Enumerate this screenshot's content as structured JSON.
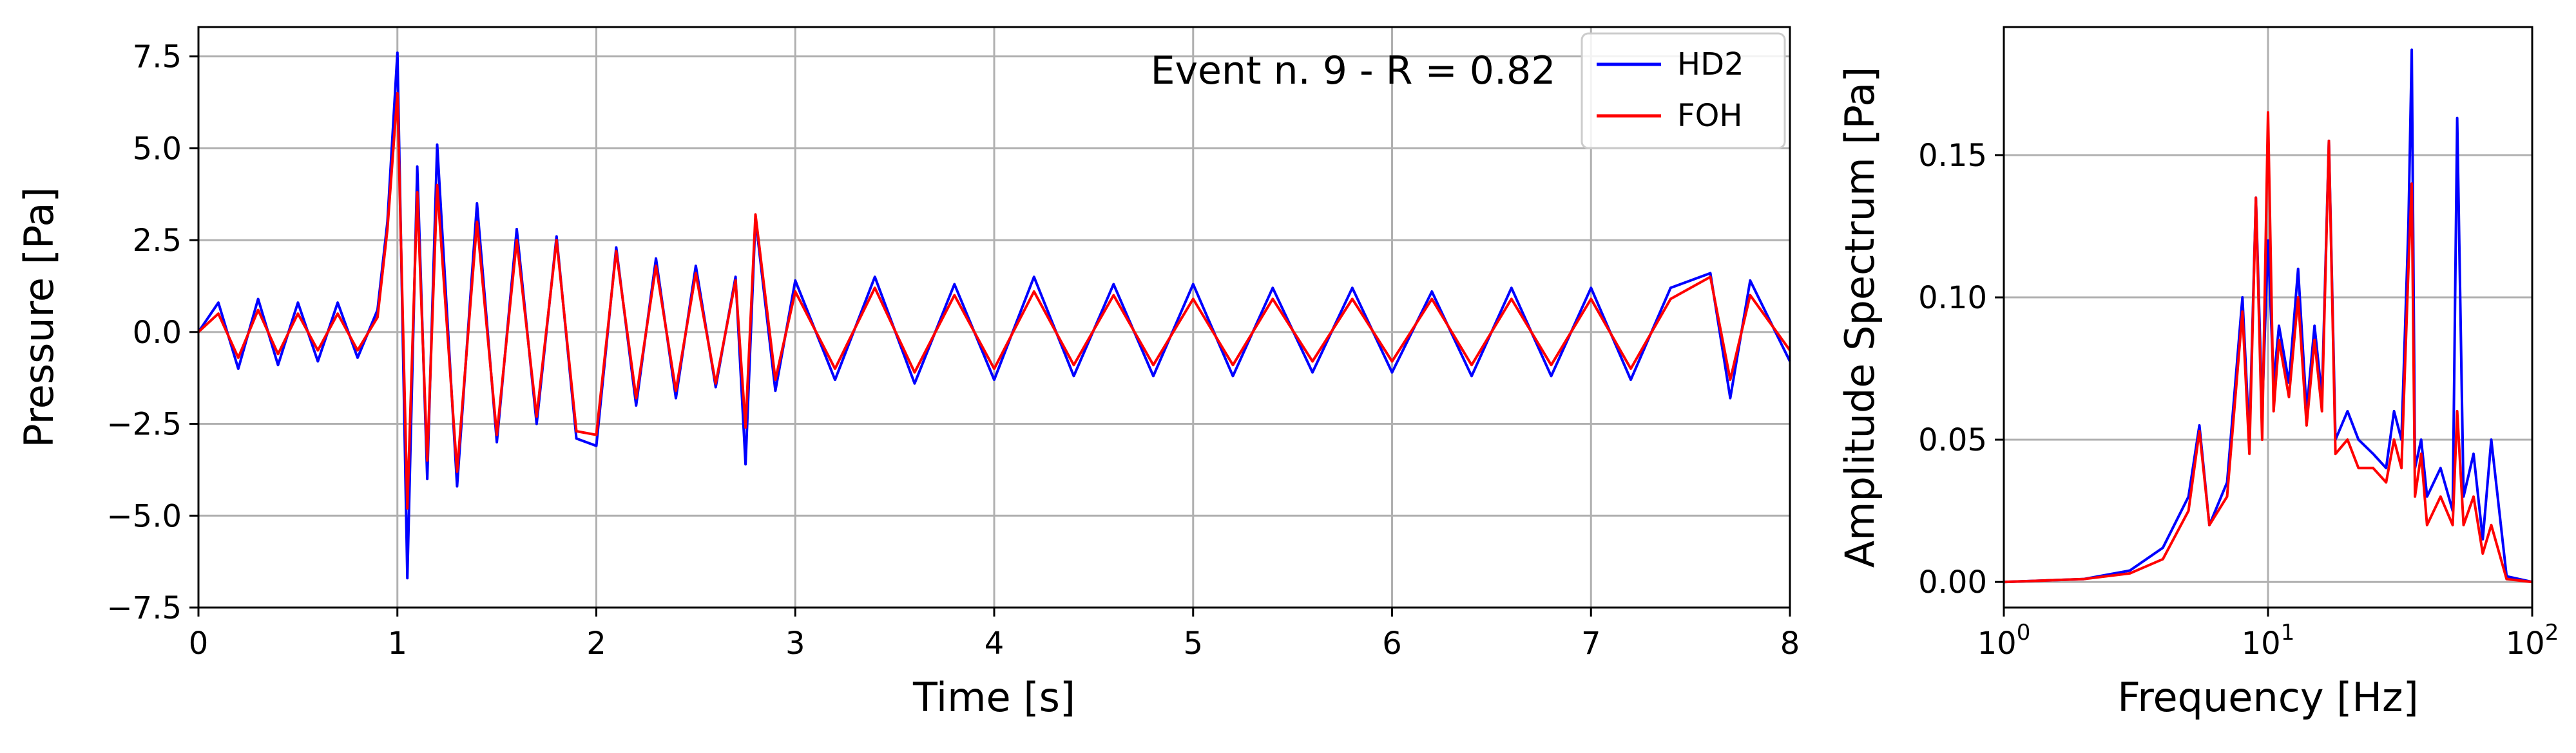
{
  "chart_data": [
    {
      "type": "line",
      "title": "Event n. 9 - R = 0.82",
      "xlabel": "Time [s]",
      "ylabel": "Pressure [Pa]",
      "xlim": [
        0,
        8
      ],
      "ylim": [
        -7.5,
        8.3
      ],
      "xticks": [
        0,
        1,
        2,
        3,
        4,
        5,
        6,
        7,
        8
      ],
      "xtick_labels": [
        "0",
        "1",
        "2",
        "3",
        "4",
        "5",
        "6",
        "7",
        "8"
      ],
      "yticks": [
        -7.5,
        -5.0,
        -2.5,
        0.0,
        2.5,
        5.0,
        7.5
      ],
      "ytick_labels": [
        "−7.5",
        "−5.0",
        "−2.5",
        "0.0",
        "2.5",
        "5.0",
        "7.5"
      ],
      "grid": true,
      "legend": "top-right",
      "series": [
        {
          "name": "HD2",
          "color": "#0000ff",
          "x": [
            0,
            0.1,
            0.2,
            0.3,
            0.4,
            0.5,
            0.6,
            0.7,
            0.8,
            0.9,
            0.95,
            1.0,
            1.05,
            1.1,
            1.15,
            1.2,
            1.3,
            1.4,
            1.5,
            1.6,
            1.7,
            1.8,
            1.9,
            2.0,
            2.1,
            2.2,
            2.3,
            2.4,
            2.5,
            2.6,
            2.7,
            2.75,
            2.8,
            2.9,
            3.0,
            3.2,
            3.4,
            3.6,
            3.8,
            4.0,
            4.2,
            4.4,
            4.6,
            4.8,
            5.0,
            5.2,
            5.4,
            5.6,
            5.8,
            6.0,
            6.2,
            6.4,
            6.6,
            6.8,
            7.0,
            7.2,
            7.4,
            7.6,
            7.7,
            7.8,
            8.0
          ],
          "y": [
            0.0,
            0.8,
            -1.0,
            0.9,
            -0.9,
            0.8,
            -0.8,
            0.8,
            -0.7,
            0.6,
            3.0,
            7.6,
            -6.7,
            4.5,
            -4.0,
            5.1,
            -4.2,
            3.5,
            -3.0,
            2.8,
            -2.5,
            2.6,
            -2.9,
            -3.1,
            2.3,
            -2.0,
            2.0,
            -1.8,
            1.8,
            -1.5,
            1.5,
            -3.6,
            3.1,
            -1.6,
            1.4,
            -1.3,
            1.5,
            -1.4,
            1.3,
            -1.3,
            1.5,
            -1.2,
            1.3,
            -1.2,
            1.3,
            -1.2,
            1.2,
            -1.1,
            1.2,
            -1.1,
            1.1,
            -1.2,
            1.2,
            -1.2,
            1.2,
            -1.3,
            1.2,
            1.6,
            -1.8,
            1.4,
            -0.8
          ]
        },
        {
          "name": "FOH",
          "color": "#ff0000",
          "x": [
            0,
            0.1,
            0.2,
            0.3,
            0.4,
            0.5,
            0.6,
            0.7,
            0.8,
            0.9,
            0.95,
            1.0,
            1.05,
            1.1,
            1.15,
            1.2,
            1.3,
            1.4,
            1.5,
            1.6,
            1.7,
            1.8,
            1.9,
            2.0,
            2.1,
            2.2,
            2.3,
            2.4,
            2.5,
            2.6,
            2.7,
            2.75,
            2.8,
            2.9,
            3.0,
            3.2,
            3.4,
            3.6,
            3.8,
            4.0,
            4.2,
            4.4,
            4.6,
            4.8,
            5.0,
            5.2,
            5.4,
            5.6,
            5.8,
            6.0,
            6.2,
            6.4,
            6.6,
            6.8,
            7.0,
            7.2,
            7.4,
            7.6,
            7.7,
            7.8,
            8.0
          ],
          "y": [
            0.0,
            0.5,
            -0.7,
            0.6,
            -0.6,
            0.5,
            -0.5,
            0.5,
            -0.5,
            0.4,
            2.8,
            6.5,
            -4.8,
            3.8,
            -3.5,
            4.0,
            -3.8,
            3.0,
            -2.8,
            2.5,
            -2.3,
            2.5,
            -2.7,
            -2.8,
            2.2,
            -1.8,
            1.8,
            -1.6,
            1.6,
            -1.4,
            1.4,
            -2.6,
            3.2,
            -1.3,
            1.1,
            -1.0,
            1.2,
            -1.1,
            1.0,
            -1.0,
            1.1,
            -0.9,
            1.0,
            -0.9,
            0.9,
            -0.9,
            0.9,
            -0.8,
            0.9,
            -0.8,
            0.9,
            -0.9,
            0.9,
            -0.9,
            0.9,
            -1.0,
            0.9,
            1.5,
            -1.3,
            1.0,
            -0.5
          ]
        }
      ]
    },
    {
      "type": "line",
      "title": "",
      "xlabel": "Frequency [Hz]",
      "ylabel": "Amplitude Spectrum [Pa]",
      "xscale": "log",
      "xlim": [
        1,
        100
      ],
      "ylim": [
        -0.009,
        0.195
      ],
      "xticks": [
        1,
        10,
        100
      ],
      "xtick_labels": [
        "10^0",
        "10^1",
        "10^2"
      ],
      "yticks": [
        0.0,
        0.05,
        0.1,
        0.15
      ],
      "ytick_labels": [
        "0.00",
        "0.05",
        "0.10",
        "0.15"
      ],
      "grid": true,
      "series": [
        {
          "name": "HD2",
          "color": "#0000ff",
          "x": [
            1,
            2,
            3,
            4,
            5,
            5.5,
            6,
            7,
            8,
            8.5,
            9,
            9.5,
            10,
            10.5,
            11,
            12,
            13,
            14,
            15,
            16,
            17,
            18,
            20,
            22,
            25,
            28,
            30,
            32,
            34,
            35,
            36,
            38,
            40,
            45,
            50,
            52,
            55,
            60,
            65,
            70,
            80,
            100
          ],
          "y": [
            0.0,
            0.001,
            0.004,
            0.012,
            0.03,
            0.055,
            0.02,
            0.035,
            0.1,
            0.05,
            0.135,
            0.06,
            0.12,
            0.07,
            0.09,
            0.07,
            0.11,
            0.06,
            0.09,
            0.065,
            0.155,
            0.05,
            0.06,
            0.05,
            0.045,
            0.04,
            0.06,
            0.05,
            0.125,
            0.187,
            0.04,
            0.05,
            0.03,
            0.04,
            0.025,
            0.163,
            0.03,
            0.045,
            0.015,
            0.05,
            0.002,
            0.0
          ]
        },
        {
          "name": "FOH",
          "color": "#ff0000",
          "x": [
            1,
            2,
            3,
            4,
            5,
            5.5,
            6,
            7,
            8,
            8.5,
            9,
            9.5,
            10,
            10.5,
            11,
            12,
            13,
            14,
            15,
            16,
            17,
            18,
            20,
            22,
            25,
            28,
            30,
            32,
            34,
            35,
            36,
            38,
            40,
            45,
            50,
            52,
            55,
            60,
            65,
            70,
            80,
            100
          ],
          "y": [
            0.0,
            0.001,
            0.003,
            0.008,
            0.025,
            0.053,
            0.02,
            0.03,
            0.095,
            0.045,
            0.135,
            0.05,
            0.165,
            0.06,
            0.085,
            0.065,
            0.1,
            0.055,
            0.085,
            0.06,
            0.155,
            0.045,
            0.05,
            0.04,
            0.04,
            0.035,
            0.05,
            0.04,
            0.11,
            0.14,
            0.03,
            0.045,
            0.02,
            0.03,
            0.02,
            0.06,
            0.02,
            0.03,
            0.01,
            0.02,
            0.001,
            0.0
          ]
        }
      ]
    }
  ]
}
